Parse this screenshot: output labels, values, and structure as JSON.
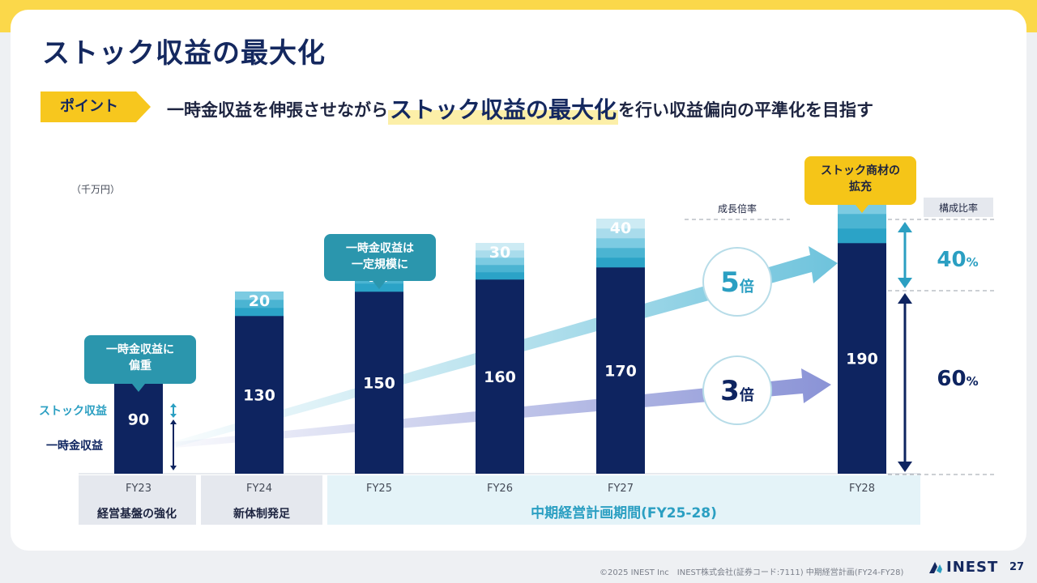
{
  "title": "ストック収益の最大化",
  "point": {
    "tag": "ポイント",
    "text_before": "一時金収益を伸張させながら",
    "text_emphasis": "ストック収益の最大化",
    "text_after": "を行い収益偏向の平準化を目指す"
  },
  "chart_data": {
    "type": "bar",
    "stacked": true,
    "unit_label": "（千万円）",
    "categories": [
      "FY23",
      "FY24",
      "FY25",
      "FY26",
      "FY27",
      "FY28"
    ],
    "series": [
      {
        "name": "一時金収益",
        "values": [
          90,
          130,
          150,
          160,
          170,
          190
        ],
        "color": "#0e2460"
      },
      {
        "name": "ストック収益",
        "values": [
          10,
          20,
          20,
          30,
          40,
          60
        ],
        "color": "#2b9fc2"
      }
    ],
    "phases": [
      {
        "label": "経営基盤の強化",
        "spans": [
          "FY23"
        ]
      },
      {
        "label": "新体制発足",
        "spans": [
          "FY24"
        ]
      },
      {
        "label": "中期経営計画期間(FY25-28)",
        "spans": [
          "FY25",
          "FY26",
          "FY27",
          "FY28"
        ]
      }
    ],
    "callouts": {
      "fy23": "一時金収益に\n偏重",
      "fy25": "一時金収益は\n一定規模に",
      "fy28": "ストック商材の\n拡充"
    },
    "growth": {
      "header": "成長倍率",
      "stock": "5倍",
      "onetime": "3倍"
    },
    "composition": {
      "header": "構成比率",
      "stock": "40%",
      "onetime": "60%"
    },
    "colors": {
      "navy": "#0e2460",
      "stock": "#2b9fc2",
      "callout_teal": "#2b96ad",
      "callout_yellow": "#f5c518"
    }
  },
  "footer": {
    "copyright": "©2025 INEST Inc　INEST株式会社(証券コード:7111) 中期経営計画(FY24-FY28)",
    "brand": "INEST",
    "page": "27"
  }
}
